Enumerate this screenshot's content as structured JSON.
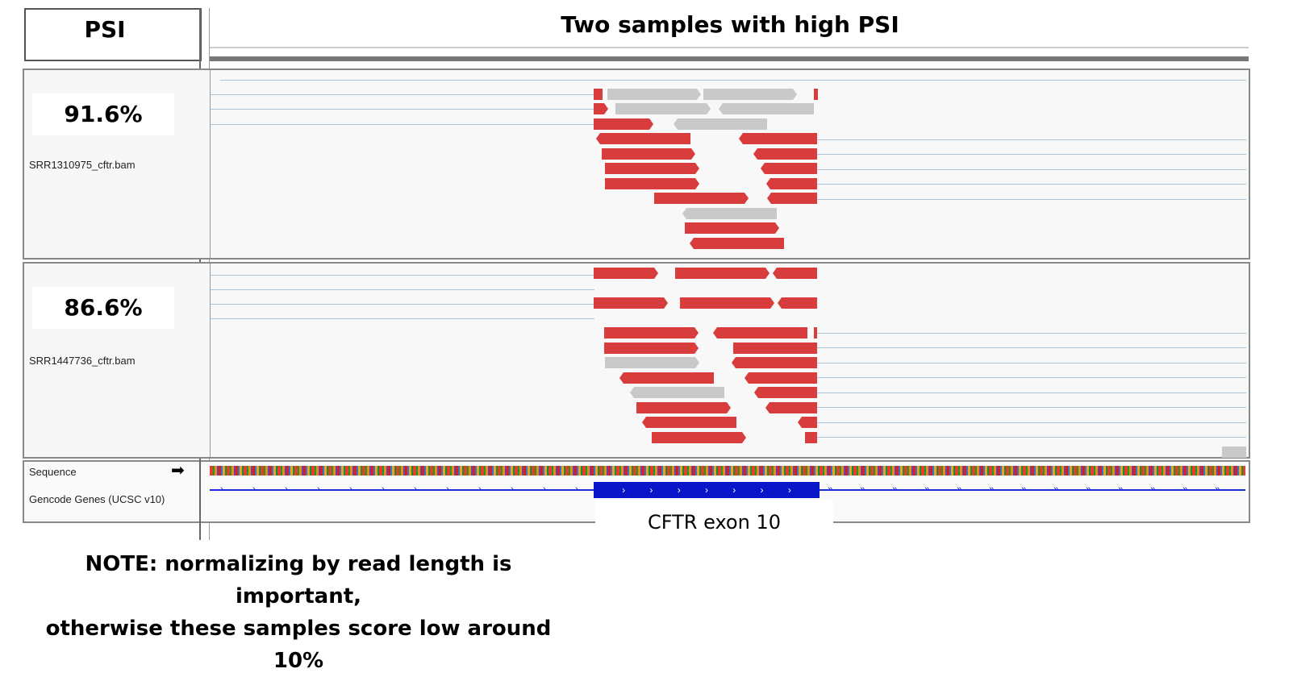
{
  "header": {
    "psi_label": "PSI",
    "title": "Two samples with high PSI"
  },
  "tracks": [
    {
      "psi": "91.6%",
      "bam": "SRR1310975_cftr.bam"
    },
    {
      "psi": "86.6%",
      "bam": "SRR1447736_cftr.bam"
    }
  ],
  "bottom": {
    "sequence_label": "Sequence",
    "sequence_arrow": "➡",
    "genes_label": "Gencode Genes (UCSC v10)",
    "exon_label": "CFTR exon 10"
  },
  "note": {
    "line1": "NOTE: normalizing by read length is important,",
    "line2": "otherwise these samples score low around 10%"
  },
  "colors": {
    "read_red": "#d83c3c",
    "read_gray": "#c9c9c9",
    "gene_blue": "#0a14c8",
    "splice_line": "#a9c3d6"
  }
}
